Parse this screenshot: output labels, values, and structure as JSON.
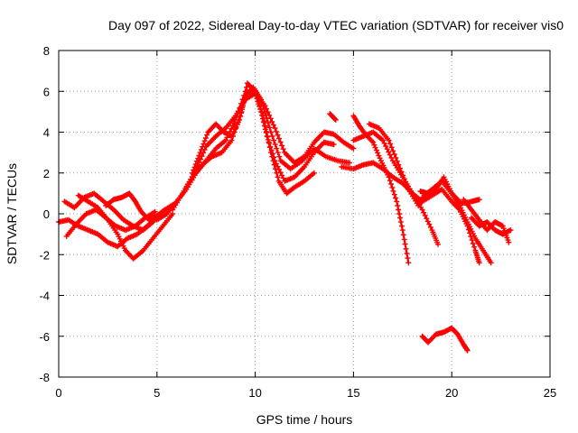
{
  "chart_data": {
    "type": "scatter",
    "title": "Day 097 of 2022, Sidereal Day-to-day VTEC variation (SDTVAR) for receiver vis0",
    "xlabel": "GPS time / hours",
    "ylabel": "SDTVAR / TECUs",
    "xlim": [
      0,
      25
    ],
    "ylim": [
      -8,
      8
    ],
    "xticks": [
      0,
      5,
      10,
      15,
      20,
      25
    ],
    "yticks": [
      -8,
      -6,
      -4,
      -2,
      0,
      2,
      4,
      6,
      8
    ],
    "grid": true,
    "marker": "plus",
    "color": "#ff0000",
    "series": [
      {
        "name": "arc-1",
        "points": [
          [
            0.0,
            -0.4
          ],
          [
            0.5,
            -0.3
          ],
          [
            1.0,
            -0.6
          ],
          [
            1.5,
            -0.8
          ],
          [
            2.0,
            -1.0
          ],
          [
            2.5,
            -1.4
          ],
          [
            3.0,
            -1.6
          ],
          [
            3.5,
            -1.2
          ],
          [
            4.0,
            -1.0
          ],
          [
            4.5,
            -0.6
          ],
          [
            5.0,
            -0.2
          ]
        ]
      },
      {
        "name": "arc-2",
        "points": [
          [
            0.3,
            0.6
          ],
          [
            0.8,
            0.3
          ],
          [
            1.3,
            0.8
          ],
          [
            1.8,
            1.0
          ],
          [
            2.3,
            0.6
          ],
          [
            2.8,
            0.2
          ],
          [
            3.3,
            -0.3
          ],
          [
            3.8,
            -0.6
          ],
          [
            4.3,
            -0.8
          ],
          [
            4.8,
            -0.4
          ]
        ]
      },
      {
        "name": "arc-3",
        "points": [
          [
            0.4,
            -1.1
          ],
          [
            0.9,
            -0.5
          ],
          [
            1.4,
            0.0
          ],
          [
            1.9,
            0.2
          ],
          [
            2.4,
            -0.2
          ],
          [
            2.9,
            -0.6
          ],
          [
            3.4,
            -0.8
          ],
          [
            3.9,
            -0.6
          ],
          [
            4.4,
            -0.2
          ],
          [
            4.9,
            0.1
          ]
        ]
      },
      {
        "name": "arc-4",
        "points": [
          [
            1.0,
            0.9
          ],
          [
            1.5,
            0.6
          ],
          [
            2.0,
            0.3
          ],
          [
            2.5,
            -0.3
          ],
          [
            3.0,
            -1.0
          ],
          [
            3.4,
            -1.8
          ],
          [
            3.8,
            -2.2
          ],
          [
            4.3,
            -1.8
          ],
          [
            4.8,
            -1.2
          ],
          [
            5.3,
            -0.6
          ],
          [
            5.8,
            0.0
          ]
        ]
      },
      {
        "name": "arc-5",
        "points": [
          [
            2.4,
            0.4
          ],
          [
            2.8,
            0.7
          ],
          [
            3.2,
            0.8
          ],
          [
            3.6,
            1.0
          ],
          [
            3.9,
            0.6
          ],
          [
            4.2,
            0.1
          ],
          [
            4.6,
            -0.3
          ],
          [
            5.0,
            -0.1
          ],
          [
            5.4,
            0.2
          ],
          [
            5.9,
            0.5
          ]
        ]
      },
      {
        "name": "arc-6",
        "points": [
          [
            5.0,
            -0.3
          ],
          [
            5.5,
            0.0
          ],
          [
            6.0,
            0.6
          ],
          [
            6.5,
            1.2
          ],
          [
            7.0,
            2.0
          ],
          [
            7.5,
            2.6
          ],
          [
            8.0,
            3.2
          ],
          [
            8.5,
            3.6
          ],
          [
            9.0,
            4.6
          ],
          [
            9.5,
            6.0
          ],
          [
            10.0,
            5.9
          ],
          [
            10.3,
            5.0
          ],
          [
            10.6,
            3.8
          ],
          [
            11.0,
            2.6
          ],
          [
            11.5,
            1.6
          ],
          [
            12.0,
            1.8
          ],
          [
            12.5,
            2.3
          ],
          [
            13.0,
            3.0
          ],
          [
            13.5,
            3.5
          ],
          [
            14.0,
            3.4
          ]
        ]
      },
      {
        "name": "arc-7",
        "points": [
          [
            5.8,
            0.2
          ],
          [
            6.3,
            1.0
          ],
          [
            6.8,
            1.8
          ],
          [
            7.3,
            2.4
          ],
          [
            7.8,
            2.8
          ],
          [
            8.3,
            3.0
          ],
          [
            8.8,
            3.6
          ],
          [
            9.3,
            5.0
          ],
          [
            9.6,
            6.4
          ],
          [
            10.0,
            6.0
          ],
          [
            10.4,
            4.8
          ],
          [
            10.8,
            3.0
          ],
          [
            11.2,
            1.6
          ],
          [
            11.6,
            1.0
          ],
          [
            12.0,
            1.3
          ],
          [
            12.5,
            1.6
          ],
          [
            13.0,
            2.0
          ]
        ]
      },
      {
        "name": "arc-8",
        "points": [
          [
            6.5,
            1.3
          ],
          [
            7.0,
            2.2
          ],
          [
            7.5,
            3.3
          ],
          [
            8.0,
            3.8
          ],
          [
            8.5,
            4.2
          ],
          [
            9.0,
            4.8
          ],
          [
            9.5,
            5.6
          ],
          [
            10.0,
            5.9
          ],
          [
            10.5,
            5.3
          ],
          [
            11.0,
            4.2
          ],
          [
            11.5,
            3.0
          ],
          [
            12.0,
            2.5
          ],
          [
            12.5,
            2.8
          ],
          [
            13.0,
            3.5
          ],
          [
            13.5,
            4.0
          ],
          [
            14.0,
            3.9
          ],
          [
            14.5,
            3.5
          ],
          [
            15.0,
            3.2
          ]
        ]
      },
      {
        "name": "arc-9",
        "points": [
          [
            6.8,
            2.0
          ],
          [
            7.2,
            3.0
          ],
          [
            7.6,
            4.0
          ],
          [
            8.0,
            4.4
          ],
          [
            8.4,
            4.0
          ],
          [
            8.8,
            3.8
          ],
          [
            9.2,
            4.6
          ],
          [
            9.5,
            5.8
          ],
          [
            9.9,
            6.2
          ],
          [
            10.3,
            5.6
          ],
          [
            10.8,
            4.0
          ],
          [
            11.3,
            2.6
          ],
          [
            11.8,
            2.2
          ],
          [
            12.4,
            2.6
          ],
          [
            13.0,
            3.2
          ],
          [
            13.6,
            2.8
          ],
          [
            14.2,
            2.6
          ],
          [
            14.8,
            2.5
          ]
        ]
      },
      {
        "name": "arc-10",
        "points": [
          [
            13.8,
            4.9
          ],
          [
            14.1,
            4.6
          ]
        ]
      },
      {
        "name": "arc-11",
        "points": [
          [
            15.0,
            4.8
          ],
          [
            15.3,
            4.3
          ],
          [
            15.6,
            3.9
          ],
          [
            16.0,
            3.5
          ],
          [
            16.4,
            2.6
          ],
          [
            16.8,
            1.8
          ],
          [
            17.2,
            0.6
          ],
          [
            17.5,
            -0.8
          ],
          [
            17.8,
            -2.4
          ]
        ]
      },
      {
        "name": "arc-12",
        "points": [
          [
            15.0,
            3.6
          ],
          [
            15.5,
            3.8
          ],
          [
            16.0,
            4.0
          ],
          [
            16.5,
            3.6
          ],
          [
            17.0,
            2.6
          ],
          [
            17.5,
            1.8
          ],
          [
            18.0,
            1.0
          ],
          [
            18.5,
            0.2
          ],
          [
            19.0,
            -0.8
          ],
          [
            19.3,
            -1.5
          ]
        ]
      },
      {
        "name": "arc-13",
        "points": [
          [
            14.4,
            2.3
          ],
          [
            15.0,
            2.2
          ],
          [
            15.5,
            2.4
          ],
          [
            16.0,
            2.5
          ],
          [
            16.5,
            2.2
          ],
          [
            17.0,
            1.8
          ],
          [
            17.5,
            1.5
          ],
          [
            18.0,
            1.0
          ],
          [
            18.5,
            0.6
          ],
          [
            19.0,
            0.9
          ],
          [
            19.5,
            1.2
          ],
          [
            20.0,
            0.6
          ],
          [
            20.4,
            0.2
          ],
          [
            20.8,
            -0.6
          ],
          [
            21.2,
            -1.8
          ],
          [
            21.4,
            -2.4
          ]
        ]
      },
      {
        "name": "arc-14",
        "points": [
          [
            15.8,
            4.4
          ],
          [
            16.3,
            4.2
          ],
          [
            16.8,
            3.6
          ],
          [
            17.3,
            2.4
          ],
          [
            17.8,
            1.2
          ],
          [
            18.3,
            0.4
          ],
          [
            18.6,
            0.9
          ],
          [
            19.0,
            1.2
          ],
          [
            19.5,
            1.6
          ],
          [
            20.0,
            1.0
          ],
          [
            20.5,
            0.5
          ],
          [
            21.0,
            0.6
          ],
          [
            21.4,
            0.7
          ]
        ]
      },
      {
        "name": "arc-15",
        "points": [
          [
            18.4,
            1.1
          ],
          [
            18.8,
            1.0
          ],
          [
            19.2,
            1.2
          ],
          [
            19.6,
            1.8
          ],
          [
            20.0,
            1.0
          ],
          [
            20.4,
            0.4
          ],
          [
            20.8,
            -0.4
          ],
          [
            21.2,
            -1.2
          ],
          [
            21.6,
            -1.8
          ],
          [
            22.0,
            -2.4
          ]
        ]
      },
      {
        "name": "arc-16",
        "points": [
          [
            20.6,
            0.7
          ],
          [
            21.0,
            0.2
          ],
          [
            21.4,
            -0.3
          ],
          [
            21.8,
            -0.8
          ],
          [
            22.2,
            -0.4
          ],
          [
            22.6,
            -0.6
          ],
          [
            22.9,
            -1.4
          ]
        ]
      },
      {
        "name": "arc-17",
        "points": [
          [
            21.0,
            -0.2
          ],
          [
            21.4,
            -0.6
          ],
          [
            21.8,
            -0.4
          ],
          [
            22.2,
            -0.8
          ],
          [
            22.6,
            -1.0
          ],
          [
            23.0,
            -0.8
          ]
        ]
      },
      {
        "name": "arc-18",
        "points": [
          [
            18.5,
            -6.0
          ],
          [
            18.8,
            -6.3
          ],
          [
            19.2,
            -5.9
          ],
          [
            19.6,
            -5.8
          ],
          [
            20.0,
            -5.6
          ],
          [
            20.3,
            -5.9
          ],
          [
            20.6,
            -6.4
          ],
          [
            20.8,
            -6.7
          ]
        ]
      }
    ]
  }
}
